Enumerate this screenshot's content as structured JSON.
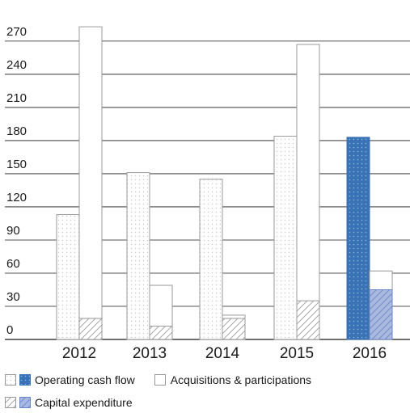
{
  "chart_data": {
    "type": "bar",
    "categories": [
      "2012",
      "2013",
      "2014",
      "2015",
      "2016"
    ],
    "series": [
      {
        "name": "Operating cash flow",
        "values": [
          113,
          151,
          145,
          184,
          183
        ]
      },
      {
        "name": "Acquisitions & participations",
        "values": [
          283,
          49,
          22,
          267,
          62
        ]
      },
      {
        "name": "Capital expenditure",
        "values": [
          19,
          12,
          19,
          35,
          45
        ]
      }
    ],
    "ylim": [
      0,
      285
    ],
    "yticks": [
      0,
      30,
      60,
      90,
      120,
      150,
      180,
      210,
      240,
      270
    ],
    "highlight_category": "2016",
    "grid": true,
    "legend": [
      {
        "label": "Operating cash flow",
        "row": 1
      },
      {
        "label": "Acquisitions & participations",
        "row": 1
      },
      {
        "label": "Capital expenditure",
        "row": 2
      }
    ],
    "colors": {
      "grid": "#1a1a1a",
      "outline": "#999999",
      "dots": "#c8c8c8",
      "highlight_blue": "#3a73b5",
      "highlight_dot": "#8fb4e0",
      "highlight_light": "#a9b9e0"
    }
  }
}
